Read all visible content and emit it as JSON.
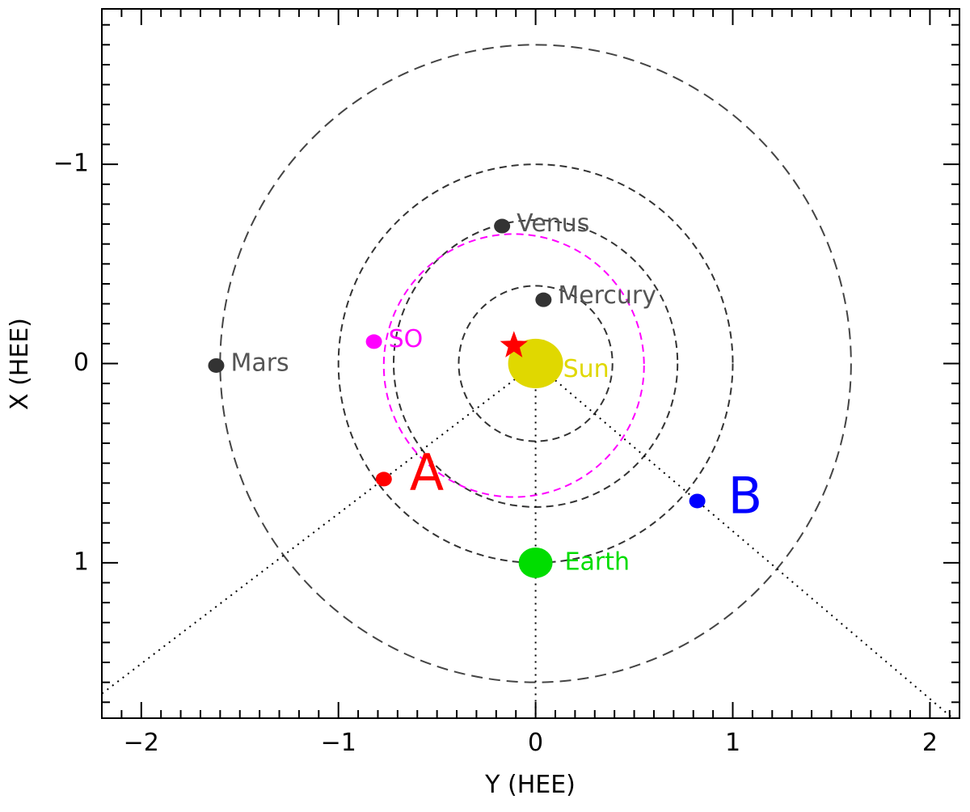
{
  "chart_data": {
    "type": "scatter",
    "title": "",
    "xlabel": "Y (HEE)",
    "ylabel": "X (HEE)",
    "xlim": [
      -2.2,
      2.15
    ],
    "ylim": [
      1.78,
      -1.78
    ],
    "y_axis_inverted": true,
    "x_ticks": [
      {
        "value": -2,
        "label": "−2"
      },
      {
        "value": -1,
        "label": "−1"
      },
      {
        "value": 0,
        "label": "0"
      },
      {
        "value": 1,
        "label": "1"
      },
      {
        "value": 2,
        "label": "2"
      }
    ],
    "y_ticks": [
      {
        "value": -1,
        "label": "−1"
      },
      {
        "value": 0,
        "label": "0"
      },
      {
        "value": 1,
        "label": "1"
      }
    ],
    "orbits": [
      {
        "body": "Mercury",
        "radius": 0.39,
        "color": "#333333",
        "style": "dashed"
      },
      {
        "body": "Venus",
        "radius": 0.72,
        "color": "#333333",
        "style": "dashed"
      },
      {
        "body": "Earth",
        "radius": 1.0,
        "color": "#333333",
        "style": "dashed"
      },
      {
        "body": "Mars",
        "radius": 1.6,
        "color": "#444444",
        "style": "dashed"
      },
      {
        "body": "SO",
        "center": [
          -0.11,
          0.01
        ],
        "radius": 0.66,
        "color": "#ff00ff",
        "style": "dashed"
      }
    ],
    "bodies": [
      {
        "name": "Sun",
        "label": "Sun",
        "y": 0.0,
        "x": 0.0,
        "color": "#e0d800",
        "label_color": "#e0d800",
        "size": "large",
        "label_size": "small"
      },
      {
        "name": "Mercury",
        "label": "Mercury",
        "y": 0.04,
        "x": -0.32,
        "color": "#333333",
        "label_color": "#555555",
        "size": "small",
        "label_size": "small"
      },
      {
        "name": "Venus",
        "label": "Venus",
        "y": -0.17,
        "x": -0.69,
        "color": "#333333",
        "label_color": "#555555",
        "size": "small",
        "label_size": "small"
      },
      {
        "name": "Mars",
        "label": "Mars",
        "y": -1.62,
        "x": 0.01,
        "color": "#333333",
        "label_color": "#555555",
        "size": "small",
        "label_size": "small"
      },
      {
        "name": "SO",
        "label": "SO",
        "y": -0.82,
        "x": -0.11,
        "color": "#ff00ff",
        "label_color": "#ff00ff",
        "size": "small",
        "label_size": "small"
      },
      {
        "name": "Earth",
        "label": "Earth",
        "y": 0.0,
        "x": 1.0,
        "color": "#00dd00",
        "label_color": "#00dd00",
        "size": "medium",
        "label_size": "small"
      },
      {
        "name": "STEREO-A",
        "label": "A",
        "y": -0.77,
        "x": 0.58,
        "color": "#ff0000",
        "label_color": "#ff0000",
        "size": "small",
        "label_size": "large"
      },
      {
        "name": "STEREO-B",
        "label": "B",
        "y": 0.82,
        "x": 0.69,
        "color": "#0000ff",
        "label_color": "#0000ff",
        "size": "small",
        "label_size": "large"
      }
    ],
    "event_marker": {
      "shape": "star",
      "color": "#ff0000",
      "y": -0.11,
      "x": -0.09
    },
    "sightlines": [
      {
        "to": "STEREO-A",
        "color": "#000000",
        "style": "dotted"
      },
      {
        "to": "Earth",
        "color": "#000000",
        "style": "dotted"
      },
      {
        "to": "STEREO-B",
        "color": "#000000",
        "style": "dotted"
      }
    ],
    "grid": false,
    "legend": "none"
  }
}
